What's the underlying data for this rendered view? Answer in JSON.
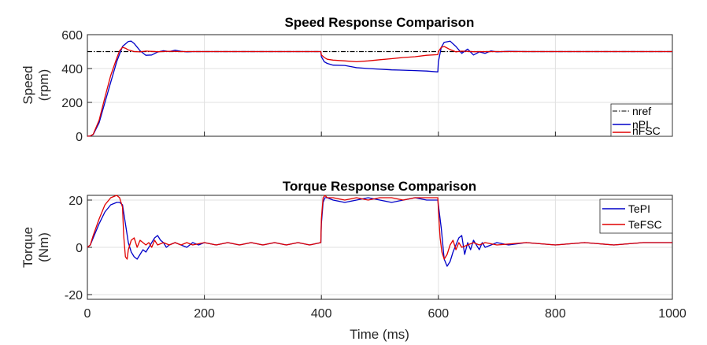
{
  "chart_data": [
    {
      "type": "line",
      "title": "Speed Response Comparison",
      "xlabel": "",
      "ylabel_line1": "Speed",
      "ylabel_line2": "(rpm)",
      "xlim": [
        0,
        1000
      ],
      "ylim": [
        0,
        600
      ],
      "xticks": [
        "0",
        "200",
        "400",
        "600",
        "800",
        "1000"
      ],
      "xtick_values": [
        0,
        200,
        400,
        600,
        800,
        1000
      ],
      "yticks": [
        "0",
        "200",
        "400",
        "600"
      ],
      "ytick_values": [
        0,
        200,
        400,
        600
      ],
      "grid": true,
      "legend_position": "lower-right",
      "series": [
        {
          "name": "nref",
          "color": "#000000",
          "dash": "dashdot",
          "x": [
            0,
            1000
          ],
          "y": [
            500,
            500
          ]
        },
        {
          "name": "nPI",
          "color": "#0000c8",
          "dash": "solid",
          "x": [
            0,
            5,
            10,
            20,
            30,
            40,
            50,
            60,
            70,
            75,
            80,
            90,
            100,
            110,
            120,
            130,
            140,
            150,
            160,
            170,
            180,
            200,
            300,
            399,
            400,
            405,
            410,
            420,
            440,
            460,
            480,
            500,
            520,
            540,
            560,
            580,
            599,
            600,
            605,
            610,
            620,
            630,
            640,
            650,
            660,
            670,
            680,
            690,
            700,
            720,
            750,
            800,
            1000
          ],
          "y": [
            0,
            2,
            10,
            80,
            200,
            320,
            440,
            530,
            560,
            562,
            548,
            505,
            478,
            480,
            497,
            505,
            500,
            508,
            502,
            498,
            500,
            500,
            500,
            500,
            470,
            440,
            430,
            420,
            418,
            405,
            400,
            396,
            392,
            390,
            388,
            385,
            380,
            440,
            525,
            555,
            562,
            530,
            490,
            515,
            480,
            498,
            490,
            504,
            498,
            502,
            500,
            500,
            500
          ]
        },
        {
          "name": "nFSC",
          "color": "#e00000",
          "dash": "solid",
          "x": [
            0,
            5,
            10,
            20,
            30,
            40,
            50,
            55,
            60,
            65,
            70,
            80,
            90,
            100,
            120,
            140,
            160,
            200,
            300,
            399,
            400,
            405,
            410,
            420,
            440,
            460,
            480,
            500,
            520,
            540,
            560,
            580,
            599,
            600,
            605,
            610,
            620,
            630,
            640,
            660,
            700,
            1000
          ],
          "y": [
            0,
            2,
            12,
            95,
            230,
            360,
            460,
            505,
            525,
            520,
            510,
            500,
            498,
            503,
            499,
            502,
            500,
            500,
            500,
            500,
            480,
            465,
            455,
            450,
            445,
            440,
            445,
            452,
            458,
            465,
            470,
            478,
            482,
            500,
            525,
            530,
            512,
            498,
            503,
            499,
            500,
            500
          ]
        }
      ]
    },
    {
      "type": "line",
      "title": "Torque Response Comparison",
      "xlabel": "Time (ms)",
      "ylabel_line1": "Torque",
      "ylabel_line2": "(Nm)",
      "xlim": [
        0,
        1000
      ],
      "ylim": [
        -22,
        22
      ],
      "xticks": [
        "0",
        "200",
        "400",
        "600",
        "800",
        "1000"
      ],
      "xtick_values": [
        0,
        200,
        400,
        600,
        800,
        1000
      ],
      "yticks": [
        "-20",
        "0",
        "20"
      ],
      "ytick_values": [
        -20,
        0,
        20
      ],
      "grid": true,
      "legend_position": "top-right",
      "series": [
        {
          "name": "TePI",
          "color": "#0000c8",
          "dash": "solid",
          "x": [
            0,
            5,
            10,
            20,
            30,
            40,
            50,
            55,
            60,
            65,
            70,
            75,
            80,
            85,
            90,
            95,
            100,
            105,
            110,
            115,
            120,
            125,
            130,
            135,
            140,
            150,
            160,
            170,
            180,
            190,
            200,
            220,
            240,
            260,
            280,
            300,
            320,
            340,
            360,
            380,
            399,
            400,
            403,
            406,
            410,
            420,
            440,
            460,
            480,
            500,
            520,
            540,
            560,
            580,
            599,
            600,
            605,
            610,
            615,
            620,
            625,
            630,
            635,
            640,
            645,
            650,
            655,
            660,
            665,
            670,
            675,
            680,
            690,
            700,
            720,
            750,
            800,
            850,
            900,
            950,
            1000
          ],
          "y": [
            0,
            1,
            4,
            10,
            15,
            18,
            19,
            19,
            18,
            10,
            2,
            -2,
            -4,
            -5,
            -3,
            -1,
            -2,
            0,
            2,
            4,
            5,
            3,
            2,
            0,
            1,
            2,
            1,
            0,
            2,
            1,
            2,
            1,
            2,
            1,
            2,
            1,
            2,
            1,
            2,
            1,
            2,
            10,
            19,
            21,
            21,
            20,
            19,
            20,
            21,
            20,
            19,
            20,
            21,
            20,
            20,
            18,
            8,
            -5,
            -8,
            -6,
            -2,
            1,
            4,
            5,
            -3,
            2,
            -1,
            3,
            1,
            -1,
            2,
            0,
            1,
            2,
            1,
            2,
            1,
            2,
            1,
            2,
            2
          ]
        },
        {
          "name": "TeFSC",
          "color": "#e00000",
          "dash": "solid",
          "x": [
            0,
            5,
            10,
            20,
            30,
            40,
            50,
            55,
            60,
            62,
            65,
            68,
            70,
            75,
            80,
            85,
            90,
            95,
            100,
            105,
            110,
            115,
            120,
            130,
            140,
            150,
            160,
            170,
            180,
            200,
            220,
            240,
            260,
            280,
            300,
            320,
            340,
            360,
            380,
            399,
            400,
            403,
            406,
            410,
            420,
            440,
            460,
            480,
            500,
            520,
            540,
            560,
            580,
            599,
            600,
            603,
            606,
            610,
            615,
            620,
            625,
            630,
            635,
            640,
            650,
            660,
            670,
            680,
            700,
            750,
            800,
            850,
            900,
            950,
            1000
          ],
          "y": [
            0,
            1,
            5,
            12,
            18,
            21,
            22,
            21,
            17,
            5,
            -4,
            -5,
            -1,
            3,
            4,
            0,
            3,
            2,
            1,
            2,
            0,
            3,
            1,
            2,
            1,
            2,
            1,
            2,
            1,
            2,
            1,
            2,
            1,
            2,
            1,
            2,
            1,
            2,
            1,
            2,
            12,
            21,
            22,
            21,
            21,
            20,
            21,
            20,
            21,
            21,
            20,
            21,
            21,
            21,
            16,
            4,
            -2,
            -5,
            -3,
            1,
            3,
            -1,
            2,
            0,
            1,
            2,
            1,
            2,
            1,
            2,
            1,
            2,
            1,
            2,
            2
          ]
        }
      ]
    }
  ]
}
